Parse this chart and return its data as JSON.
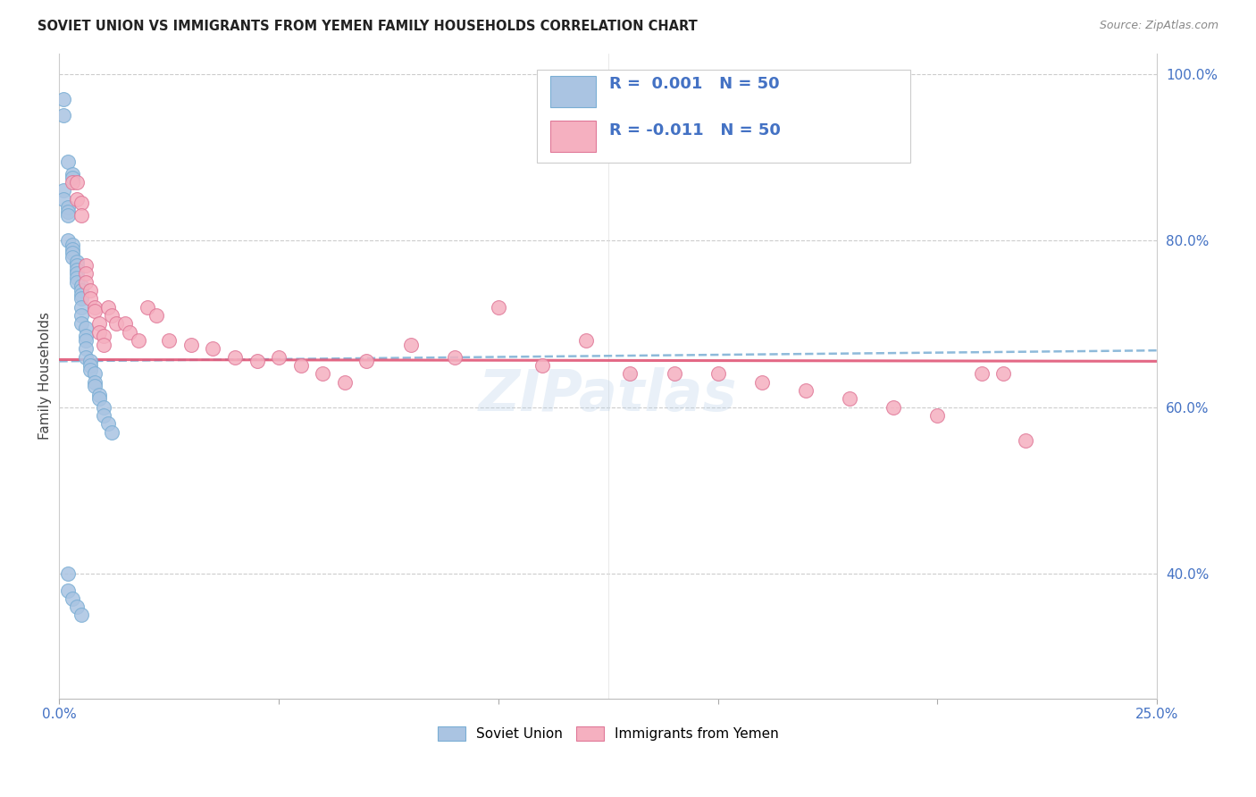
{
  "title": "SOVIET UNION VS IMMIGRANTS FROM YEMEN FAMILY HOUSEHOLDS CORRELATION CHART",
  "source": "Source: ZipAtlas.com",
  "ylabel": "Family Households",
  "xmin": 0.0,
  "xmax": 0.25,
  "ymin": 0.25,
  "ymax": 1.025,
  "color_soviet": "#aac4e2",
  "color_soviet_edge": "#7aaed4",
  "color_yemen": "#f5b0c0",
  "color_yemen_edge": "#e07898",
  "trend_soviet_color": "#7aaed4",
  "trend_yemen_color": "#e05878",
  "watermark": "ZIPatlas",
  "soviet_x": [
    0.001,
    0.001,
    0.002,
    0.003,
    0.003,
    0.001,
    0.001,
    0.002,
    0.002,
    0.002,
    0.002,
    0.003,
    0.003,
    0.003,
    0.003,
    0.004,
    0.004,
    0.004,
    0.004,
    0.004,
    0.004,
    0.005,
    0.005,
    0.005,
    0.005,
    0.005,
    0.005,
    0.005,
    0.006,
    0.006,
    0.006,
    0.006,
    0.006,
    0.007,
    0.007,
    0.007,
    0.008,
    0.008,
    0.008,
    0.009,
    0.009,
    0.01,
    0.01,
    0.011,
    0.012,
    0.002,
    0.002,
    0.003,
    0.004,
    0.005
  ],
  "soviet_y": [
    0.97,
    0.95,
    0.895,
    0.88,
    0.875,
    0.86,
    0.85,
    0.84,
    0.835,
    0.83,
    0.8,
    0.795,
    0.79,
    0.785,
    0.78,
    0.775,
    0.77,
    0.765,
    0.76,
    0.755,
    0.75,
    0.745,
    0.74,
    0.735,
    0.73,
    0.72,
    0.71,
    0.7,
    0.695,
    0.685,
    0.68,
    0.67,
    0.66,
    0.655,
    0.65,
    0.645,
    0.64,
    0.63,
    0.625,
    0.615,
    0.61,
    0.6,
    0.59,
    0.58,
    0.57,
    0.4,
    0.38,
    0.37,
    0.36,
    0.35
  ],
  "yemen_x": [
    0.003,
    0.004,
    0.004,
    0.005,
    0.005,
    0.006,
    0.006,
    0.006,
    0.007,
    0.007,
    0.008,
    0.008,
    0.009,
    0.009,
    0.01,
    0.01,
    0.011,
    0.012,
    0.013,
    0.015,
    0.016,
    0.018,
    0.02,
    0.022,
    0.025,
    0.03,
    0.035,
    0.04,
    0.045,
    0.05,
    0.055,
    0.06,
    0.065,
    0.07,
    0.08,
    0.09,
    0.1,
    0.11,
    0.12,
    0.13,
    0.14,
    0.15,
    0.16,
    0.17,
    0.18,
    0.19,
    0.2,
    0.21,
    0.215,
    0.22
  ],
  "yemen_y": [
    0.87,
    0.87,
    0.85,
    0.845,
    0.83,
    0.77,
    0.76,
    0.75,
    0.74,
    0.73,
    0.72,
    0.715,
    0.7,
    0.69,
    0.685,
    0.675,
    0.72,
    0.71,
    0.7,
    0.7,
    0.69,
    0.68,
    0.72,
    0.71,
    0.68,
    0.675,
    0.67,
    0.66,
    0.655,
    0.66,
    0.65,
    0.64,
    0.63,
    0.655,
    0.675,
    0.66,
    0.72,
    0.65,
    0.68,
    0.64,
    0.64,
    0.64,
    0.63,
    0.62,
    0.61,
    0.6,
    0.59,
    0.64,
    0.64,
    0.56
  ]
}
